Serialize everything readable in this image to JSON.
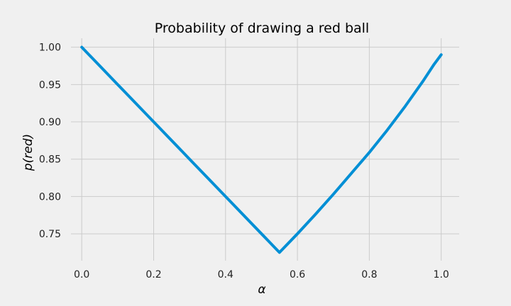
{
  "chart_data": {
    "type": "line",
    "title": "Probability of drawing a red ball",
    "xlabel": "α",
    "ylabel": "p(red)",
    "xlim": [
      -0.03,
      1.05
    ],
    "ylim": [
      0.714,
      1.012
    ],
    "grid": true,
    "x_ticks": [
      0.0,
      0.2,
      0.4,
      0.6,
      0.8,
      1.0
    ],
    "x_tick_labels": [
      "0.0",
      "0.2",
      "0.4",
      "0.6",
      "0.8",
      "1.0"
    ],
    "y_ticks": [
      0.75,
      0.8,
      0.85,
      0.9,
      0.95,
      1.0
    ],
    "y_tick_labels": [
      "0.75",
      "0.80",
      "0.85",
      "0.90",
      "0.95",
      "1.00"
    ],
    "series": [
      {
        "color": "#008fd5",
        "x": [
          0.0,
          0.1,
          0.2,
          0.3,
          0.4,
          0.5,
          0.55,
          0.6,
          0.65,
          0.7,
          0.75,
          0.8,
          0.85,
          0.9,
          0.95,
          0.98,
          1.0
        ],
        "y": [
          1.0,
          0.95,
          0.9,
          0.85,
          0.8,
          0.75,
          0.725,
          0.75,
          0.776,
          0.803,
          0.831,
          0.859,
          0.889,
          0.921,
          0.955,
          0.977,
          0.99
        ]
      }
    ]
  }
}
